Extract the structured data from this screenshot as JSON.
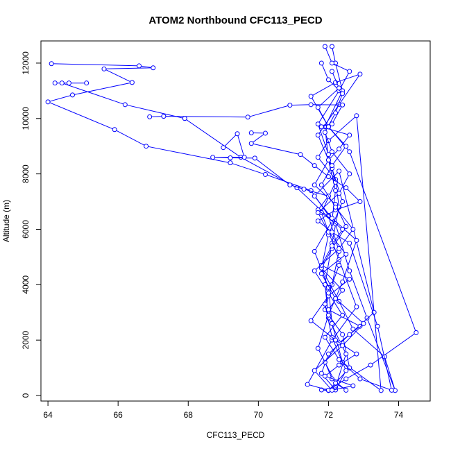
{
  "chart_data": {
    "type": "scatter",
    "title": "ATOM2 Northbound CFC113_PECD",
    "xlabel": "CFC113_PECD",
    "ylabel": "Altitude (m)",
    "xlim": [
      63.8,
      74.9
    ],
    "ylim": [
      -200,
      12800
    ],
    "xticks": [
      64,
      66,
      68,
      70,
      72,
      74
    ],
    "yticks": [
      0,
      2000,
      4000,
      6000,
      8000,
      10000,
      12000
    ],
    "grid": false,
    "connected": true,
    "color": "#0000ff",
    "series": [
      {
        "x": [
          64.1,
          66.6,
          67.0,
          65.6,
          66.4,
          64.7,
          64.0,
          65.9,
          66.8,
          69.2,
          70.2,
          71.5,
          72.0,
          72.3,
          72.1,
          71.9,
          72.4,
          72.6,
          72.0,
          71.8,
          72.2,
          72.5,
          72.0,
          71.9,
          72.1,
          72.3,
          72.2,
          71.7,
          72.0,
          72.8,
          73.5,
          72.4,
          72.1,
          72.0,
          71.6,
          72.1,
          72.2,
          72.0,
          71.9,
          72.4,
          72.2,
          72.1
        ],
        "y": [
          11980,
          11900,
          11830,
          11790,
          11300,
          10850,
          10600,
          9600,
          9000,
          8400,
          7980,
          7400,
          6500,
          5200,
          4000,
          3100,
          2200,
          1000,
          180,
          200,
          300,
          1500,
          2800,
          4000,
          5500,
          6800,
          7800,
          8600,
          9200,
          10100,
          180,
          1200,
          2600,
          3900,
          5200,
          6300,
          7400,
          8500,
          9700,
          11000,
          12000,
          12600
        ]
      },
      {
        "x": [
          64.2,
          64.6,
          65.1,
          64.4,
          66.2,
          67.9,
          69.5,
          71.1,
          72.2,
          72.6,
          73.1,
          73.9,
          73.6,
          72.7,
          72.3,
          71.8,
          72.0,
          72.4,
          72.1,
          71.7,
          72.3,
          72.9,
          72.2,
          71.5,
          72.0,
          72.6,
          74.5,
          73.2,
          72.5,
          72.0,
          71.4,
          72.1,
          72.8,
          72.3,
          71.8,
          72.2,
          72.0,
          71.7,
          72.3,
          72.6,
          72.1,
          71.9
        ],
        "y": [
          11280,
          11280,
          11280,
          11280,
          10500,
          10000,
          8600,
          7500,
          6200,
          4500,
          2800,
          180,
          1400,
          2400,
          3400,
          4600,
          5800,
          7000,
          8200,
          9400,
          10500,
          11600,
          11300,
          10800,
          9700,
          8800,
          2270,
          1100,
          600,
          190,
          400,
          2000,
          3200,
          4900,
          6600,
          7700,
          8700,
          9800,
          11000,
          11700,
          12000,
          12600
        ]
      },
      {
        "x": [
          66.9,
          67.3,
          69.7,
          70.9,
          71.5,
          72.4,
          72.1,
          71.8,
          72.6,
          72.3,
          72.0,
          71.6,
          72.2,
          72.5,
          72.1,
          71.8,
          72.4,
          72.0,
          72.9,
          72.3,
          71.9,
          72.1,
          72.5,
          72.2,
          71.7,
          72.0,
          72.4,
          72.8,
          72.1,
          71.6,
          72.3,
          73.3,
          72.6,
          72.0,
          71.8,
          72.2,
          72.5,
          72.1,
          71.9,
          72.3
        ],
        "y": [
          10060,
          10080,
          10050,
          10480,
          10500,
          10490,
          9800,
          9700,
          9400,
          8900,
          8500,
          7600,
          6900,
          6100,
          5300,
          4600,
          3800,
          3100,
          2500,
          1900,
          1200,
          600,
          190,
          450,
          1700,
          2900,
          4100,
          5600,
          6400,
          7200,
          8100,
          3000,
          2200,
          1500,
          800,
          200,
          900,
          2100,
          3300,
          4700
        ]
      },
      {
        "x": [
          69.0,
          69.4,
          69.6,
          68.7,
          69.2,
          69.9,
          70.9,
          71.3,
          72.0,
          71.7,
          72.4,
          72.1,
          71.8,
          72.6,
          72.0,
          71.5,
          72.2,
          72.8,
          72.3,
          71.9,
          72.7,
          72.1,
          71.6,
          72.4,
          73.0,
          72.2,
          71.8,
          72.5,
          72.0,
          71.7,
          72.3,
          72.6,
          72.1,
          71.9,
          72.2,
          72.4,
          72.0,
          71.8
        ],
        "y": [
          8950,
          9450,
          8600,
          8600,
          8580,
          8570,
          7600,
          7450,
          7200,
          6700,
          6000,
          5400,
          4700,
          4200,
          3600,
          2700,
          2000,
          1500,
          1100,
          700,
          350,
          190,
          900,
          1800,
          2600,
          3500,
          4400,
          5100,
          5900,
          6600,
          7300,
          8000,
          8800,
          9500,
          10200,
          10900,
          11400,
          12000
        ]
      },
      {
        "x": [
          69.8,
          70.2,
          69.8,
          71.2,
          71.6,
          72.0,
          72.5,
          72.9,
          72.2,
          71.7,
          72.1,
          72.6,
          73.4,
          73.8,
          72.9,
          72.3,
          71.9,
          72.4,
          72.0,
          71.6,
          72.3,
          72.7,
          72.2,
          71.8,
          72.1,
          72.5,
          72.0,
          71.7,
          72.3,
          72.1
        ],
        "y": [
          9480,
          9470,
          9100,
          8700,
          8300,
          7900,
          7500,
          7000,
          6700,
          6300,
          5900,
          5500,
          2500,
          190,
          600,
          1300,
          2100,
          2900,
          3700,
          4500,
          5300,
          6000,
          6800,
          7600,
          8300,
          9000,
          9700,
          10400,
          11100,
          11700
        ]
      }
    ]
  }
}
